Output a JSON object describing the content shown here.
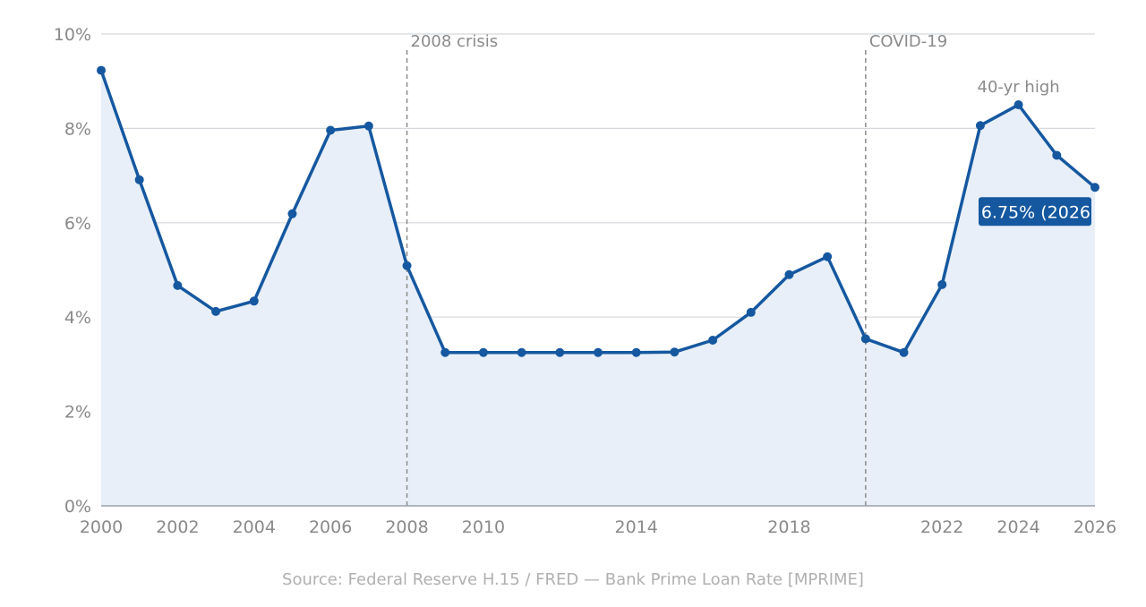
{
  "chart_data": {
    "type": "area",
    "xlabel": "",
    "ylabel": "",
    "xlim": [
      2000,
      2026
    ],
    "ylim": [
      0,
      10
    ],
    "y_ticks": [
      0,
      2,
      4,
      6,
      8,
      10
    ],
    "y_tick_labels": [
      "0%",
      "2%",
      "4%",
      "6%",
      "8%",
      "10%"
    ],
    "x_ticks": [
      2000,
      2002,
      2004,
      2006,
      2008,
      2010,
      2014,
      2018,
      2022,
      2024,
      2026
    ],
    "x_tick_labels": [
      "2000",
      "2002",
      "2004",
      "2006",
      "2008",
      "2010",
      "2014",
      "2018",
      "2022",
      "2024",
      "2026"
    ],
    "grid": "horizontal",
    "series": [
      {
        "x": [
          2000,
          2001,
          2002,
          2003,
          2004,
          2005,
          2006,
          2007,
          2008,
          2009,
          2010,
          2011,
          2012,
          2013,
          2014,
          2015,
          2016,
          2017,
          2018,
          2019,
          2020,
          2021,
          2022,
          2023,
          2024,
          2025,
          2026
        ],
        "values": [
          9.23,
          6.91,
          4.67,
          4.12,
          4.34,
          6.19,
          7.96,
          8.05,
          5.09,
          3.25,
          3.25,
          3.25,
          3.25,
          3.25,
          3.25,
          3.26,
          3.51,
          4.1,
          4.9,
          5.28,
          3.54,
          3.25,
          4.69,
          8.06,
          8.5,
          7.43,
          6.75
        ]
      }
    ],
    "annotations": [
      {
        "type": "vline",
        "x": 2008,
        "label": "2008 crisis"
      },
      {
        "type": "vline",
        "x": 2020,
        "label": "COVID-19"
      },
      {
        "type": "point-label",
        "x": 2024,
        "y": 8.5,
        "label": "40-yr high"
      },
      {
        "type": "callout",
        "x": 2026,
        "y": 6.75,
        "label": "6.75% (2026"
      }
    ],
    "source": "Source: Federal Reserve H.15 / FRED — Bank Prime Loan Rate [MPRIME]",
    "colors": {
      "line": "#1558a0",
      "area": "#e8eff8",
      "grid": "#d5d9de",
      "vline": "#8a8a8a",
      "callout_bg": "#1558a0",
      "callout_text": "#ffffff"
    }
  }
}
